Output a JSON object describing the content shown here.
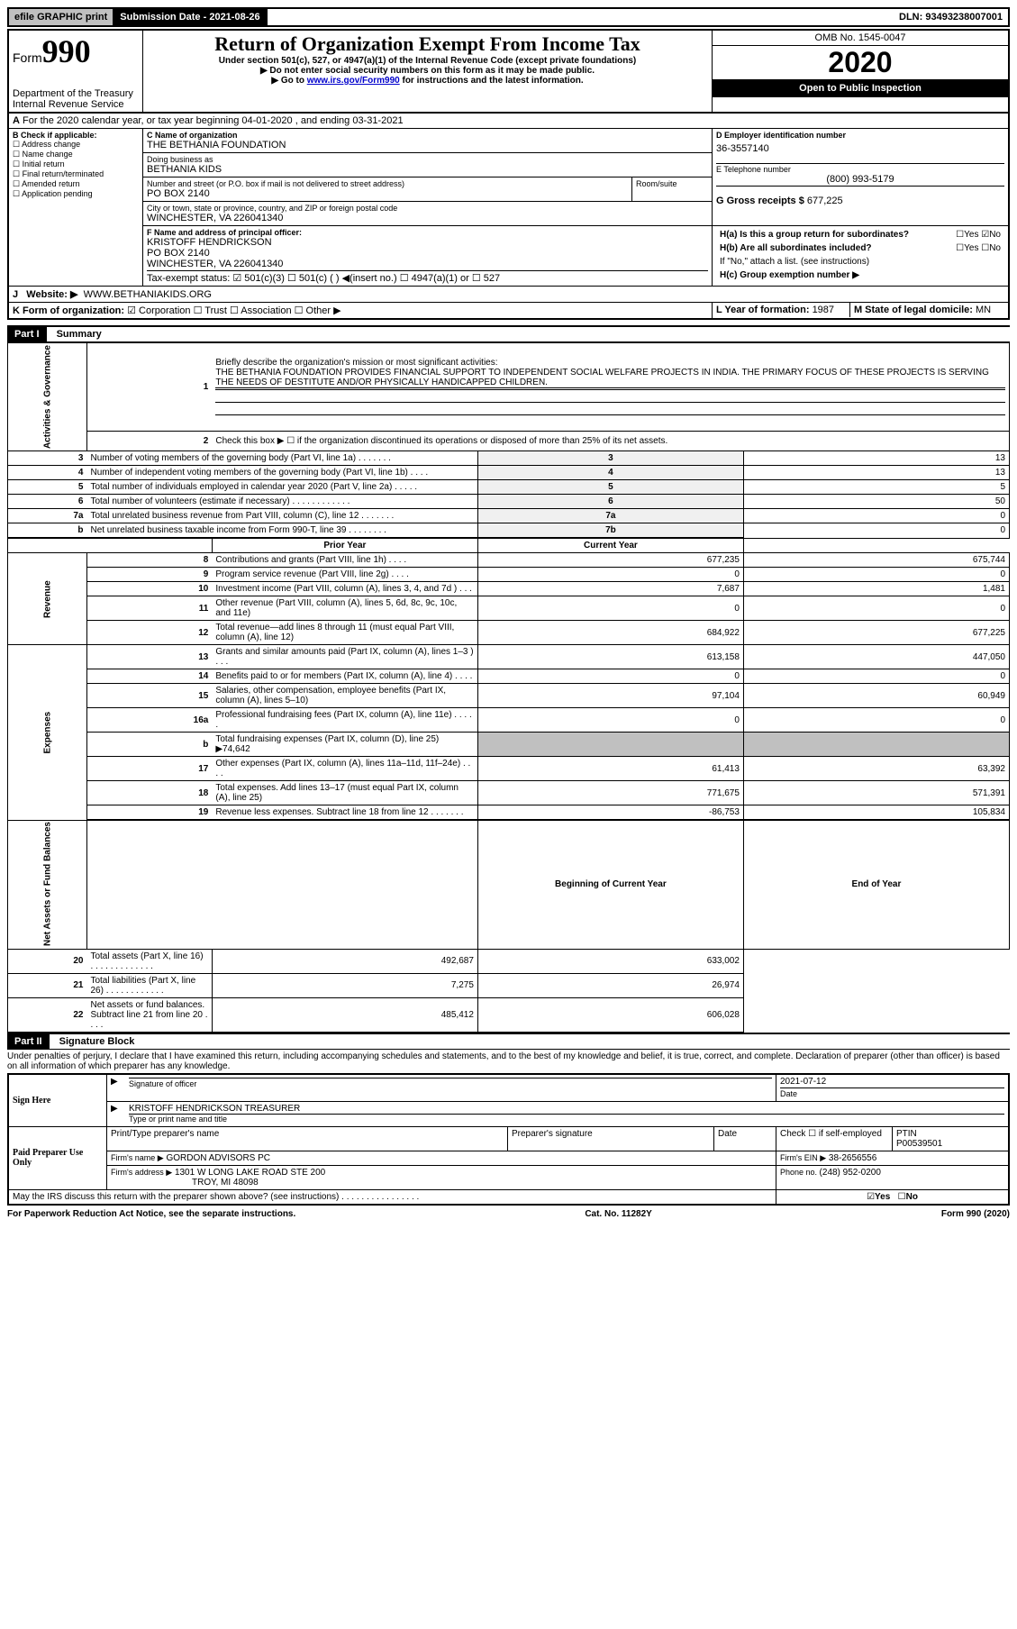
{
  "topbar": {
    "efile": "efile GRAPHIC print",
    "subdate_label": "Submission Date - ",
    "subdate": "2021-08-26",
    "dln_label": "DLN: ",
    "dln": "93493238007001"
  },
  "form": {
    "form_prefix": "Form",
    "form_no": "990",
    "title": "Return of Organization Exempt From Income Tax",
    "subtitle1": "Under section 501(c), 527, or 4947(a)(1) of the Internal Revenue Code (except private foundations)",
    "subtitle2": "▶ Do not enter social security numbers on this form as it may be made public.",
    "subtitle3a": "▶ Go to ",
    "subtitle3_link": "www.irs.gov/Form990",
    "subtitle3b": " for instructions and the latest information.",
    "dept1": "Department of the Treasury",
    "dept2": "Internal Revenue Service",
    "omb_label": "OMB No. ",
    "omb": "1545-0047",
    "year": "2020",
    "open": "Open to Public Inspection"
  },
  "header": {
    "line_a": "For the 2020 calendar year, or tax year beginning 04-01-2020    , and ending 03-31-2021",
    "b_label": "B Check if applicable:",
    "b_opts": [
      "Address change",
      "Name change",
      "Initial return",
      "Final return/terminated",
      "Amended return",
      "Application pending"
    ],
    "c_label": "C Name of organization",
    "c_name": "THE BETHANIA FOUNDATION",
    "dba_label": "Doing business as",
    "dba": "BETHANIA KIDS",
    "street_label": "Number and street (or P.O. box if mail is not delivered to street address)",
    "room_label": "Room/suite",
    "street": "PO BOX 2140",
    "city_label": "City or town, state or province, country, and ZIP or foreign postal code",
    "city": "WINCHESTER, VA  226041340",
    "d_label": "D Employer identification number",
    "d_val": "36-3557140",
    "e_label": "E Telephone number",
    "e_val": "(800) 993-5179",
    "g_label": "G Gross receipts $ ",
    "g_val": "677,225",
    "f_label": "F  Name and address of principal officer:",
    "f_name": "KRISTOFF HENDRICKSON",
    "f_addr1": "PO BOX 2140",
    "f_addr2": "WINCHESTER, VA  226041340",
    "ha_label": "H(a)  Is this a group return for subordinates?",
    "hb_label": "H(b)  Are all subordinates included?",
    "h_note": "If \"No,\" attach a list. (see instructions)",
    "hc_label": "H(c)  Group exemption number ▶",
    "yes": "Yes",
    "no": "No",
    "tax_status_label": "Tax-exempt status:",
    "tax_opts": [
      "501(c)(3)",
      "501(c) (   ) ◀(insert no.)",
      "4947(a)(1) or",
      "527"
    ],
    "website_label": "Website: ▶",
    "website": "WWW.BETHANIAKIDS.ORG",
    "k_label": "K Form of organization:",
    "k_opts": [
      "Corporation",
      "Trust",
      "Association",
      "Other ▶"
    ],
    "l_label": "L Year of formation: ",
    "l_val": "1987",
    "m_label": "M State of legal domicile: ",
    "m_val": "MN"
  },
  "part1": {
    "label": "Part I",
    "title": "Summary",
    "q1_label": "Briefly describe the organization's mission or most significant activities:",
    "q1_text": "THE BETHANIA FOUNDATION PROVIDES FINANCIAL SUPPORT TO INDEPENDENT SOCIAL WELFARE PROJECTS IN INDIA. THE PRIMARY FOCUS OF THESE PROJECTS IS SERVING THE NEEDS OF DESTITUTE AND/OR PHYSICALLY HANDICAPPED CHILDREN.",
    "q2": "Check this box ▶ ☐  if the organization discontinued its operations or disposed of more than 25% of its net assets.",
    "sections": {
      "activities": "Activities & Governance",
      "revenue": "Revenue",
      "expenses": "Expenses",
      "netassets": "Net Assets or Fund Balances"
    },
    "col_prior": "Prior Year",
    "col_current": "Current Year",
    "col_begin": "Beginning of Current Year",
    "col_end": "End of Year",
    "lines_gov": [
      {
        "n": "3",
        "d": "Number of voting members of the governing body (Part VI, line 1a)   .    .    .    .    .    .    .",
        "box": "3",
        "v": "13"
      },
      {
        "n": "4",
        "d": "Number of independent voting members of the governing body (Part VI, line 1b)   .    .    .    .",
        "box": "4",
        "v": "13"
      },
      {
        "n": "5",
        "d": "Total number of individuals employed in calendar year 2020 (Part V, line 2a)  .    .    .    .    .",
        "box": "5",
        "v": "5"
      },
      {
        "n": "6",
        "d": "Total number of volunteers (estimate if necessary)    .    .    .    .    .    .    .    .    .    .    .    .",
        "box": "6",
        "v": "50"
      },
      {
        "n": "7a",
        "d": "Total unrelated business revenue from Part VIII, column (C), line 12   .    .    .    .    .    .    .",
        "box": "7a",
        "v": "0"
      },
      {
        "n": "b",
        "d": "Net unrelated business taxable income from Form 990-T, line 39   .    .    .    .    .    .    .    .",
        "box": "7b",
        "v": "0"
      }
    ],
    "lines_rev": [
      {
        "n": "8",
        "d": "Contributions and grants (Part VIII, line 1h)   .    .    .    .",
        "p": "677,235",
        "c": "675,744"
      },
      {
        "n": "9",
        "d": "Program service revenue (Part VIII, line 2g)  .    .    .    .",
        "p": "0",
        "c": "0"
      },
      {
        "n": "10",
        "d": "Investment income (Part VIII, column (A), lines 3, 4, and 7d )    .    .    .",
        "p": "7,687",
        "c": "1,481"
      },
      {
        "n": "11",
        "d": "Other revenue (Part VIII, column (A), lines 5, 6d, 8c, 9c, 10c, and 11e)",
        "p": "0",
        "c": "0"
      },
      {
        "n": "12",
        "d": "Total revenue—add lines 8 through 11 (must equal Part VIII, column (A), line 12)",
        "p": "684,922",
        "c": "677,225"
      }
    ],
    "lines_exp": [
      {
        "n": "13",
        "d": "Grants and similar amounts paid (Part IX, column (A), lines 1–3 )  .    .    .",
        "p": "613,158",
        "c": "447,050"
      },
      {
        "n": "14",
        "d": "Benefits paid to or for members (Part IX, column (A), line 4)   .    .    .    .",
        "p": "0",
        "c": "0"
      },
      {
        "n": "15",
        "d": "Salaries, other compensation, employee benefits (Part IX, column (A), lines 5–10)",
        "p": "97,104",
        "c": "60,949"
      },
      {
        "n": "16a",
        "d": "Professional fundraising fees (Part IX, column (A), line 11e)  .    .    .    .    .",
        "p": "0",
        "c": "0"
      },
      {
        "n": "b",
        "d": "Total fundraising expenses (Part IX, column (D), line 25) ▶74,642",
        "p": "",
        "c": "",
        "gray": true
      },
      {
        "n": "17",
        "d": "Other expenses (Part IX, column (A), lines 11a–11d, 11f–24e)   .    .    .    .",
        "p": "61,413",
        "c": "63,392"
      },
      {
        "n": "18",
        "d": "Total expenses. Add lines 13–17 (must equal Part IX, column (A), line 25)",
        "p": "771,675",
        "c": "571,391"
      },
      {
        "n": "19",
        "d": "Revenue less expenses. Subtract line 18 from line 12 .    .    .    .    .    .    .",
        "p": "-86,753",
        "c": "105,834"
      }
    ],
    "lines_net": [
      {
        "n": "20",
        "d": "Total assets (Part X, line 16)  .    .    .    .    .    .    .    .    .    .    .    .    .",
        "p": "492,687",
        "c": "633,002"
      },
      {
        "n": "21",
        "d": "Total liabilities (Part X, line 26)   .    .    .    .    .    .    .    .    .    .    .    .",
        "p": "7,275",
        "c": "26,974"
      },
      {
        "n": "22",
        "d": "Net assets or fund balances. Subtract line 21 from line 20   .    .    .    .",
        "p": "485,412",
        "c": "606,028"
      }
    ]
  },
  "part2": {
    "label": "Part II",
    "title": "Signature Block",
    "penalty": "Under penalties of perjury, I declare that I have examined this return, including accompanying schedules and statements, and to the best of my knowledge and belief, it is true, correct, and complete. Declaration of preparer (other than officer) is based on all information of which preparer has any knowledge.",
    "sign_here": "Sign Here",
    "sig_officer": "Signature of officer",
    "sig_date": "Date",
    "sig_date_val": "2021-07-12",
    "sig_name": "KRISTOFF HENDRICKSON  TREASURER",
    "sig_type": "Type or print name and title",
    "paid": "Paid Preparer Use Only",
    "prep_name_label": "Print/Type preparer's name",
    "prep_sig_label": "Preparer's signature",
    "date_label": "Date",
    "check_label": "Check ☐  if self-employed",
    "ptin_label": "PTIN",
    "ptin_val": "P00539501",
    "firm_name_label": "Firm's name    ▶",
    "firm_name": "GORDON ADVISORS PC",
    "firm_ein_label": "Firm's EIN ▶",
    "firm_ein": "38-2656556",
    "firm_addr_label": "Firm's address ▶",
    "firm_addr1": "1301 W LONG LAKE ROAD STE 200",
    "firm_addr2": "TROY, MI  48098",
    "phone_label": "Phone no. ",
    "phone": "(248) 952-0200",
    "discuss": "May the IRS discuss this return with the preparer shown above? (see instructions)    .    .    .    .    .    .    .    .    .    .    .    .    .    .    .    ."
  },
  "footer": {
    "paperwork": "For Paperwork Reduction Act Notice, see the separate instructions.",
    "cat": "Cat. No. 11282Y",
    "form": "Form 990 (2020)"
  }
}
